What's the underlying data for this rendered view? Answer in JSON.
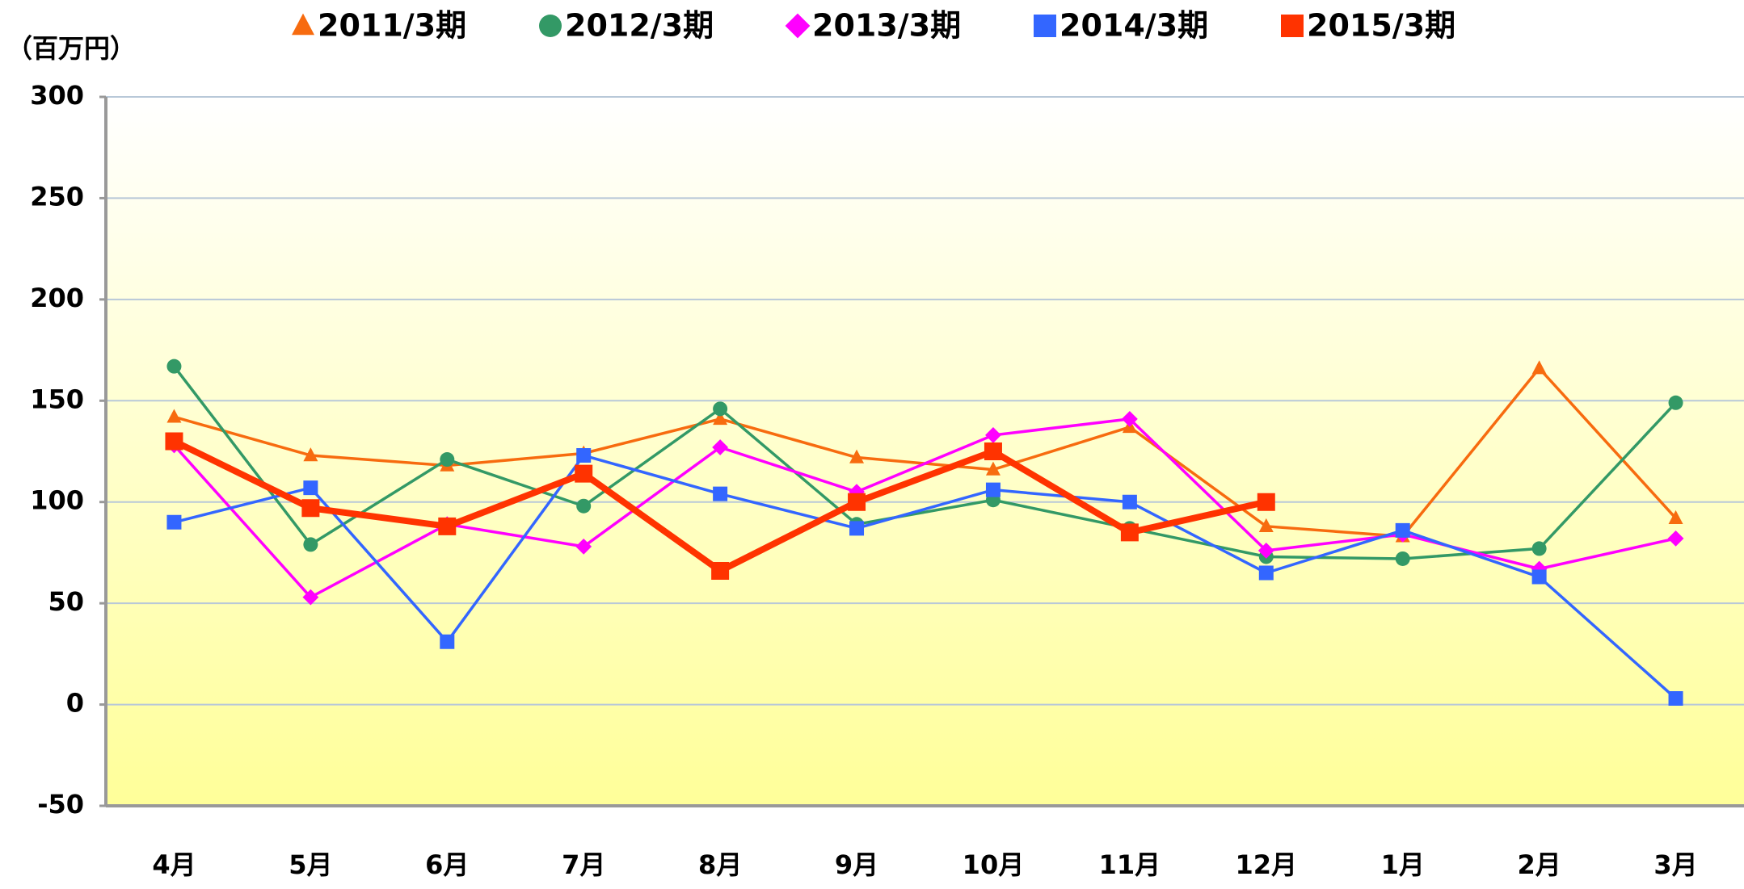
{
  "chart_data": {
    "type": "line",
    "y_axis_label": "（百万円）",
    "categories": [
      "4月",
      "5月",
      "6月",
      "7月",
      "8月",
      "9月",
      "10月",
      "11月",
      "12月",
      "1月",
      "2月",
      "3月"
    ],
    "series": [
      {
        "name": "2011/3期",
        "color": "#f76b0f",
        "marker": "triangle",
        "values": [
          142,
          123,
          118,
          124,
          141,
          122,
          116,
          137,
          88,
          83,
          166,
          92
        ]
      },
      {
        "name": "2012/3期",
        "color": "#339966",
        "marker": "circle",
        "values": [
          167,
          79,
          121,
          98,
          146,
          89,
          101,
          87,
          73,
          72,
          77,
          149
        ]
      },
      {
        "name": "2013/3期",
        "color": "#ff00ff",
        "marker": "diamond",
        "values": [
          128,
          53,
          89,
          78,
          127,
          105,
          133,
          141,
          76,
          84,
          67,
          82
        ]
      },
      {
        "name": "2014/3期",
        "color": "#3366ff",
        "marker": "square",
        "values": [
          90,
          107,
          31,
          123,
          104,
          87,
          106,
          100,
          65,
          86,
          63,
          3
        ]
      },
      {
        "name": "2015/3期",
        "color": "#ff3300",
        "marker": "square",
        "values": [
          130,
          97,
          88,
          114,
          66,
          100,
          125,
          85,
          100,
          null,
          null,
          null
        ]
      }
    ],
    "ylim": [
      -50,
      300
    ],
    "yticks": [
      -50,
      0,
      50,
      100,
      150,
      200,
      250,
      300
    ],
    "grid": true
  }
}
